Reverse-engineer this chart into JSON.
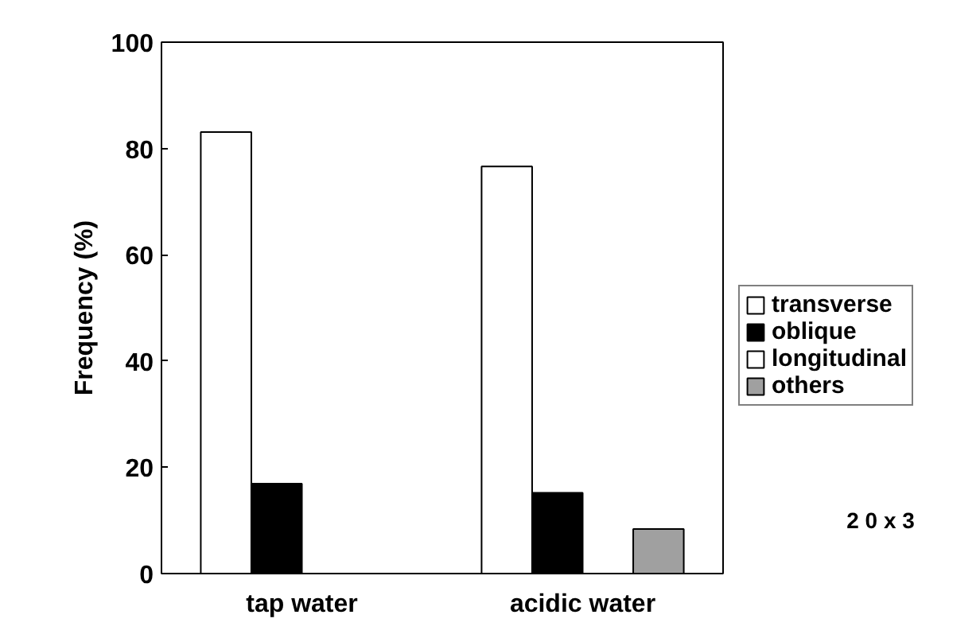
{
  "chart_data": {
    "type": "bar",
    "ylabel": "Frequency (%)",
    "categories": [
      "tap water",
      "acidic water"
    ],
    "series": [
      {
        "name": "transverse",
        "color": "#ffffff",
        "values": [
          83.1,
          76.6
        ]
      },
      {
        "name": "oblique",
        "color": "#000000",
        "values": [
          16.9,
          15.2
        ]
      },
      {
        "name": "longitudinal",
        "color": "#ffffff",
        "values": [
          null,
          null
        ]
      },
      {
        "name": "others",
        "color": "#a0a0a0",
        "values": [
          null,
          8.4
        ]
      }
    ],
    "ylim": [
      0,
      100
    ],
    "yticks": [
      0,
      20,
      40,
      60,
      80,
      100
    ],
    "legend": "right",
    "annotations": [
      "2 0 x 3"
    ]
  }
}
